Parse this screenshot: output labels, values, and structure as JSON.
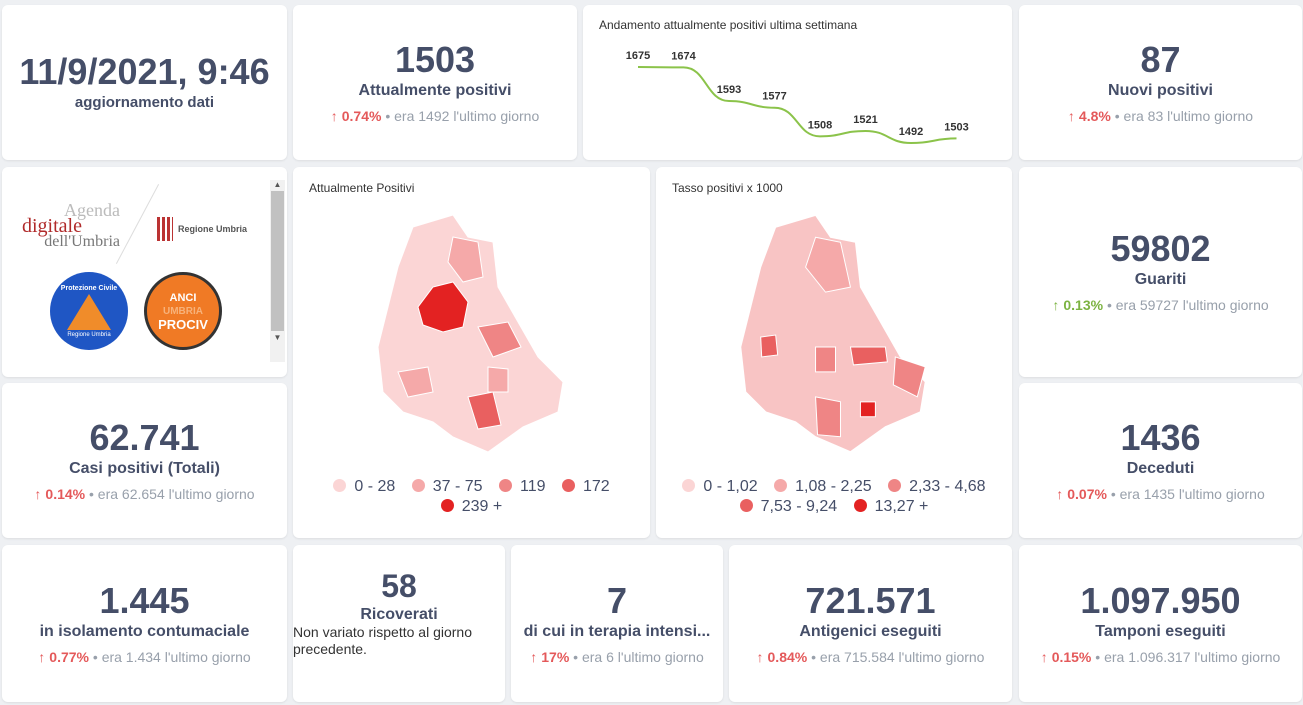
{
  "update": {
    "value": "11/9/2021, 9:46",
    "label": "aggiornamento dati"
  },
  "attualmente": {
    "value": "1503",
    "label": "Attualmente positivi",
    "arrow": "↑",
    "pct": "0.74%",
    "prev": "era 1492",
    "suffix": "l'ultimo giorno"
  },
  "trend": {
    "title": "Andamento attualmente positivi ultima settimana",
    "chart_data": {
      "type": "line",
      "values": [
        1675,
        1674,
        1593,
        1577,
        1508,
        1521,
        1492,
        1503
      ],
      "labels": [
        "1675",
        "1674",
        "1593",
        "1577",
        "1508",
        "1521",
        "1492",
        "1503"
      ],
      "color": "#8bc34a"
    }
  },
  "nuovi": {
    "value": "87",
    "label": "Nuovi positivi",
    "arrow": "↑",
    "pct": "4.8%",
    "prev": "era 83",
    "suffix": "l'ultimo giorno"
  },
  "logos": {
    "agenda1": "Agenda",
    "agenda2": "digitale",
    "agenda3": "dell'Umbria",
    "regione": "Regione Umbria",
    "protezione": "Protezione Civile",
    "protezione_sub": "Regione Umbria",
    "anci1": "ANCI",
    "anci2": "UMBRIA",
    "anci3": "PROCIV"
  },
  "map1": {
    "title": "Attualmente Positivi",
    "legend": [
      {
        "label": "0 - 28",
        "color": "#fbd5d5"
      },
      {
        "label": "37 - 75",
        "color": "#f5a9a9"
      },
      {
        "label": "119",
        "color": "#ef8585"
      },
      {
        "label": "172",
        "color": "#e96060"
      },
      {
        "label": "239 +",
        "color": "#e32222"
      }
    ]
  },
  "map2": {
    "title": "Tasso positivi x 1000",
    "legend": [
      {
        "label": "0 - 1,02",
        "color": "#fbd5d5"
      },
      {
        "label": "1,08 - 2,25",
        "color": "#f5a9a9"
      },
      {
        "label": "2,33 - 4,68",
        "color": "#ef8585"
      },
      {
        "label": "7,53 - 9,24",
        "color": "#e96060"
      },
      {
        "label": "13,27 +",
        "color": "#e32222"
      }
    ]
  },
  "guariti": {
    "value": "59802",
    "label": "Guariti",
    "arrow": "↑",
    "pct": "0.13%",
    "prev": "era 59727",
    "suffix": "l'ultimo giorno"
  },
  "casi": {
    "value": "62.741",
    "label": "Casi positivi (Totali)",
    "arrow": "↑",
    "pct": "0.14%",
    "prev": "era 62.654",
    "suffix": "l'ultimo giorno"
  },
  "deceduti": {
    "value": "1436",
    "label": "Deceduti",
    "arrow": "↑",
    "pct": "0.07%",
    "prev": "era 1435",
    "suffix": "l'ultimo giorno"
  },
  "isolamento": {
    "value": "1.445",
    "label": "in isolamento contumaciale",
    "arrow": "↑",
    "pct": "0.77%",
    "prev": "era 1.434",
    "suffix": "l'ultimo giorno"
  },
  "ricoverati": {
    "value": "58",
    "label": "Ricoverati",
    "note": "Non variato rispetto al giorno precedente."
  },
  "terapia": {
    "value": "7",
    "label": "di cui in terapia intensi...",
    "arrow": "↑",
    "pct": "17%",
    "prev": "era 6",
    "suffix": "l'ultimo giorno"
  },
  "antigenici": {
    "value": "721.571",
    "label": "Antigenici eseguiti",
    "arrow": "↑",
    "pct": "0.84%",
    "prev": "era 715.584",
    "suffix": "l'ultimo giorno"
  },
  "tamponi": {
    "value": "1.097.950",
    "label": "Tamponi eseguiti",
    "arrow": "↑",
    "pct": "0.15%",
    "prev": "era 1.096.317",
    "suffix": "l'ultimo giorno"
  }
}
